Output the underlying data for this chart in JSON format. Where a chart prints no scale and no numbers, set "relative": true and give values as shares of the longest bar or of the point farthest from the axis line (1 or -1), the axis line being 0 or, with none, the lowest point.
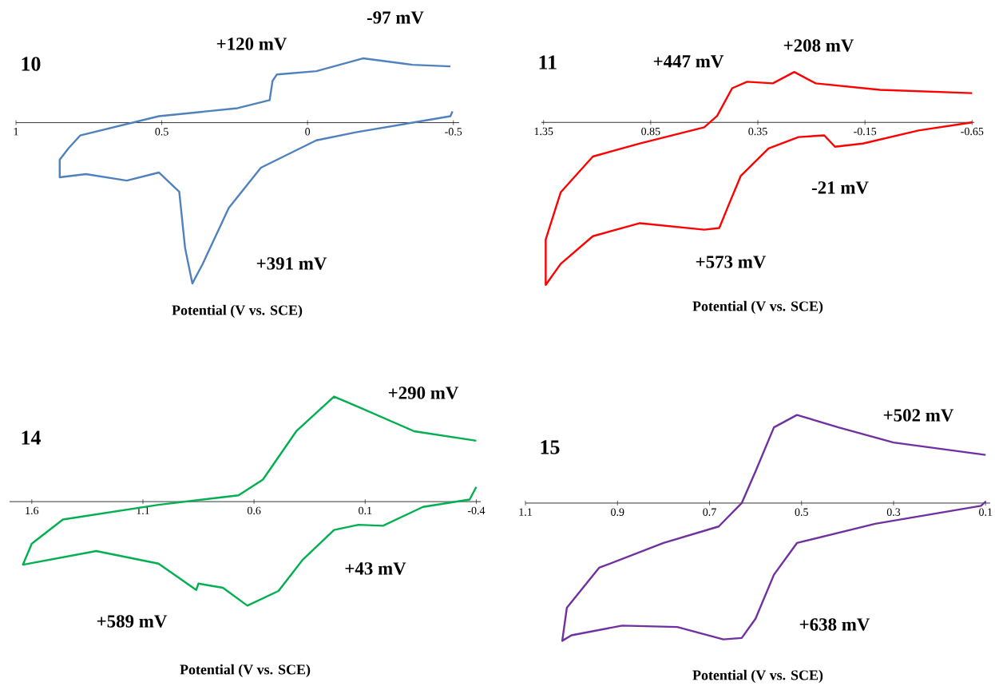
{
  "chart_data": [
    {
      "type": "line",
      "relative": true,
      "title": "10",
      "xlabel": "Potential (V vs. SCE)",
      "xlim": [
        1.0,
        -0.52
      ],
      "xticks": [
        1,
        0.5,
        0,
        -0.5
      ],
      "color": "#4f81bd",
      "x": [
        -0.497,
        -0.49,
        -0.166,
        -0.03,
        0.16,
        0.27,
        0.36,
        0.395,
        0.42,
        0.44,
        0.51,
        0.62,
        0.76,
        0.85,
        0.85,
        0.82,
        0.78,
        0.51,
        0.24,
        0.13,
        0.12,
        0.105,
        -0.03,
        -0.19,
        -0.36,
        -0.49
      ],
      "values": [
        0.07,
        0.04,
        -0.06,
        -0.11,
        -0.28,
        -0.53,
        -0.88,
        -1,
        -0.78,
        -0.43,
        -0.31,
        -0.36,
        -0.32,
        -0.34,
        -0.23,
        -0.16,
        -0.08,
        0.04,
        0.09,
        0.14,
        0.26,
        0.3,
        0.32,
        0.4,
        0.36,
        0.35
      ],
      "annotations": [
        "+120 mV",
        "-97 mV",
        "+391 mV"
      ]
    },
    {
      "type": "line",
      "relative": true,
      "title": "11",
      "xlabel": "Potential (V vs. SCE)",
      "xlim": [
        1.36,
        -0.66
      ],
      "xticks": [
        1.35,
        0.85,
        0.35,
        -0.15,
        -0.65
      ],
      "color": "#ff0000",
      "x": [
        -0.65,
        -0.4,
        -0.14,
        -0.01,
        0.04,
        0.16,
        0.3,
        0.43,
        0.49,
        0.53,
        0.6,
        0.9,
        1.12,
        1.27,
        1.34,
        1.34,
        1.27,
        1.12,
        0.9,
        0.6,
        0.54,
        0.47,
        0.4,
        0.28,
        0.18,
        0.08,
        -0.22,
        -0.65
      ],
      "values": [
        0.0,
        -0.05,
        -0.13,
        -0.15,
        -0.08,
        -0.09,
        -0.16,
        -0.33,
        -0.52,
        -0.65,
        -0.66,
        -0.62,
        -0.7,
        -0.87,
        -1,
        -0.72,
        -0.43,
        -0.21,
        -0.13,
        -0.03,
        0.04,
        0.21,
        0.25,
        0.24,
        0.31,
        0.24,
        0.2,
        0.18
      ],
      "annotations": [
        "+447 mV",
        "+208 mV",
        "-21 mV",
        "+573 mV"
      ]
    },
    {
      "type": "line",
      "relative": true,
      "title": "14",
      "xlabel": "Potential (V vs. SCE)",
      "xlim": [
        1.7,
        -0.42
      ],
      "xticks": [
        1.6,
        1.1,
        0.6,
        0.1,
        -0.4
      ],
      "color": "#00b050",
      "x": [
        -0.4,
        -0.37,
        -0.16,
        0.02,
        0.13,
        0.24,
        0.38,
        0.49,
        0.63,
        0.74,
        0.85,
        0.86,
        1.03,
        1.31,
        1.64,
        1.6,
        1.46,
        1.03,
        0.67,
        0.56,
        0.41,
        0.24,
        0.13,
        -0.12,
        -0.4
      ],
      "values": [
        0.14,
        0.02,
        -0.05,
        -0.23,
        -0.22,
        -0.27,
        -0.55,
        -0.85,
        -0.99,
        -0.82,
        -0.78,
        -0.84,
        -0.59,
        -0.47,
        -0.6,
        -0.4,
        -0.17,
        -0.03,
        0.06,
        0.21,
        0.67,
        1,
        0.9,
        0.67,
        0.58
      ],
      "annotations": [
        "+290 mV",
        "+43 mV",
        "+589 mV"
      ]
    },
    {
      "type": "line",
      "relative": true,
      "title": "15",
      "xlabel": "Potential (V vs. SCE)",
      "xlim": [
        1.1,
        0.09
      ],
      "xticks": [
        1.1,
        0.9,
        0.7,
        0.5,
        0.3,
        0.1
      ],
      "color": "#7030a0",
      "x": [
        0.1,
        0.11,
        0.34,
        0.51,
        0.56,
        0.6,
        0.63,
        0.67,
        0.77,
        0.89,
        1.0,
        1.02,
        1.01,
        0.94,
        0.8,
        0.68,
        0.63,
        0.6,
        0.56,
        0.51,
        0.42,
        0.3,
        0.1
      ],
      "values": [
        0.01,
        -0.02,
        -0.15,
        -0.29,
        -0.52,
        -0.84,
        -0.98,
        -0.99,
        -0.9,
        -0.89,
        -0.96,
        -1,
        -0.76,
        -0.47,
        -0.29,
        -0.17,
        0.0,
        0.23,
        0.55,
        0.64,
        0.55,
        0.44,
        0.35
      ],
      "annotations": [
        "+502 mV",
        "+638 mV"
      ]
    }
  ]
}
